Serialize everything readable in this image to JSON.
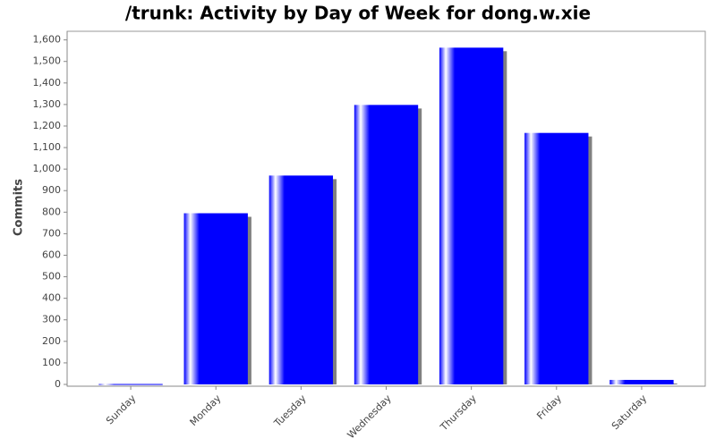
{
  "chart_data": {
    "type": "bar",
    "title": "/trunk: Activity by Day of Week for dong.w.xie",
    "y_label": "Commits",
    "categories": [
      "Sunday",
      "Monday",
      "Tuesday",
      "Wednesday",
      "Thursday",
      "Friday",
      "Saturday"
    ],
    "values": [
      2,
      795,
      970,
      1298,
      1564,
      1168,
      21
    ],
    "color": "#0000ff",
    "ylim": [
      0,
      1640
    ],
    "yticks": [
      0,
      100,
      200,
      300,
      400,
      500,
      600,
      700,
      800,
      900,
      {
        "value": 1000,
        "label": "1,000"
      },
      {
        "value": 1100,
        "label": "1,100"
      },
      {
        "value": 1200,
        "label": "1,200"
      },
      {
        "value": 1300,
        "label": "1,300"
      },
      {
        "value": 1400,
        "label": "1,400"
      },
      {
        "value": 1500,
        "label": "1,500"
      },
      {
        "value": 1600,
        "label": "1,600"
      }
    ],
    "grid": false
  }
}
